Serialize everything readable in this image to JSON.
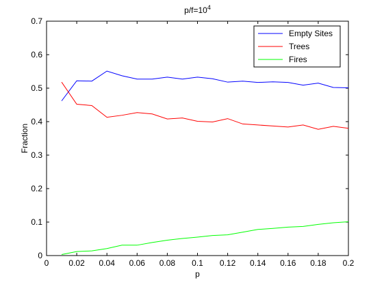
{
  "chart_data": {
    "type": "line",
    "title": {
      "base": "p/f=10",
      "superscript": "4"
    },
    "xlabel": "p",
    "ylabel": "Fraction",
    "xlim": [
      0,
      0.2
    ],
    "ylim": [
      0,
      0.7
    ],
    "xticks": [
      "0",
      "0.02",
      "0.04",
      "0.06",
      "0.08",
      "0.1",
      "0.12",
      "0.14",
      "0.16",
      "0.18",
      "0.2"
    ],
    "yticks": [
      "0",
      "0.1",
      "0.2",
      "0.3",
      "0.4",
      "0.5",
      "0.6",
      "0.7"
    ],
    "grid": false,
    "legend_position": "top-right",
    "x": [
      0.01,
      0.02,
      0.03,
      0.04,
      0.05,
      0.06,
      0.07,
      0.08,
      0.09,
      0.1,
      0.11,
      0.12,
      0.13,
      0.14,
      0.15,
      0.16,
      0.17,
      0.18,
      0.19,
      0.2
    ],
    "series": [
      {
        "name": "Empty Sites",
        "color": "#0000ff",
        "values": [
          0.462,
          0.522,
          0.521,
          0.551,
          0.537,
          0.527,
          0.527,
          0.533,
          0.527,
          0.533,
          0.528,
          0.518,
          0.521,
          0.517,
          0.519,
          0.517,
          0.509,
          0.515,
          0.502,
          0.501
        ]
      },
      {
        "name": "Trees",
        "color": "#ff0000",
        "values": [
          0.518,
          0.452,
          0.448,
          0.413,
          0.419,
          0.427,
          0.423,
          0.408,
          0.411,
          0.401,
          0.399,
          0.409,
          0.393,
          0.39,
          0.387,
          0.384,
          0.39,
          0.377,
          0.386,
          0.38
        ]
      },
      {
        "name": "Fires",
        "color": "#00ff00",
        "values": [
          0.003,
          0.012,
          0.014,
          0.021,
          0.031,
          0.031,
          0.039,
          0.046,
          0.051,
          0.055,
          0.06,
          0.062,
          0.07,
          0.078,
          0.081,
          0.085,
          0.087,
          0.093,
          0.098,
          0.101
        ]
      }
    ]
  }
}
